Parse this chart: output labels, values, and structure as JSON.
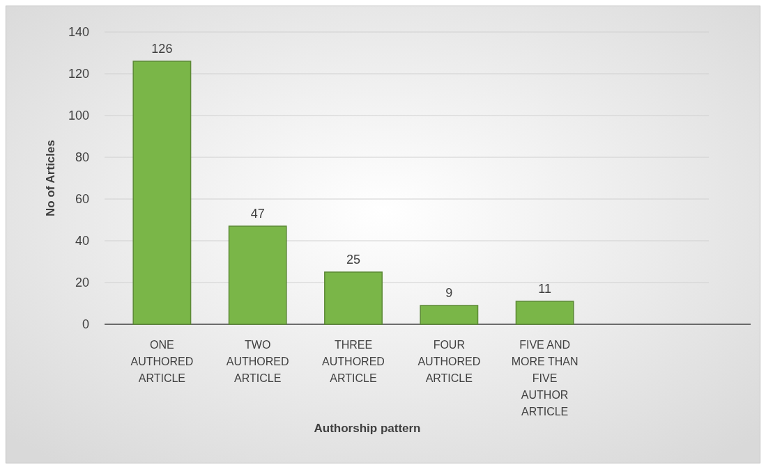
{
  "chart_data": {
    "type": "bar",
    "xlabel": "Authorship pattern",
    "ylabel": "No of Articles",
    "categories": [
      "ONE AUTHORED ARTICLE",
      "TWO AUTHORED ARTICLE",
      "THREE AUTHORED ARTICLE",
      "FOUR AUTHORED ARTICLE",
      "FIVE AND MORE THAN FIVE AUTHOR ARTICLE"
    ],
    "values": [
      126,
      47,
      25,
      9,
      11
    ],
    "color": "#7ab648",
    "ylim": [
      0,
      140
    ],
    "yticks": [
      0,
      20,
      40,
      60,
      80,
      100,
      120,
      140
    ],
    "grid": "y",
    "data_labels": true
  }
}
